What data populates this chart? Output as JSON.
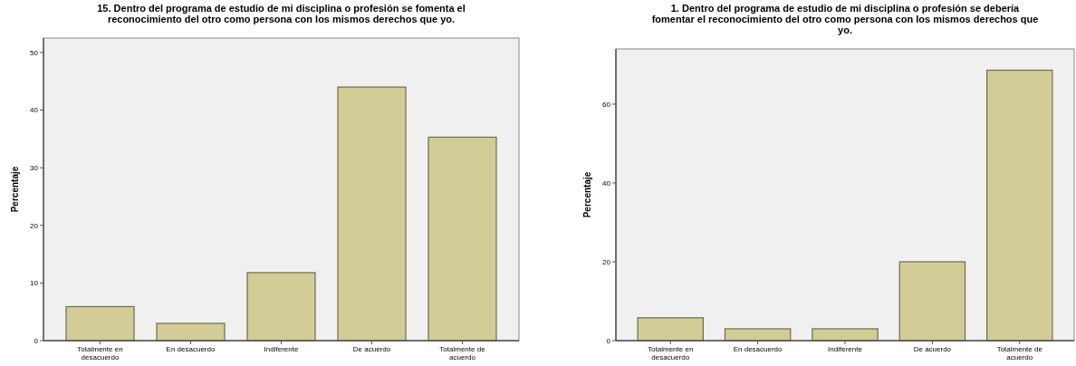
{
  "chart_data": [
    {
      "type": "bar",
      "title": "15. Dentro del programa de estudio de mi disciplina o profesión se fomenta el reconocimiento del otro como persona con los mismos derechos que yo.",
      "ylabel": "Percentaje",
      "categories": [
        "Totalmente en desacuerdo",
        "En desacuerdo",
        "Indiferente",
        "De acuerdo",
        "Totalmente de acuerdo"
      ],
      "values": [
        5.9,
        3.0,
        11.8,
        44.0,
        35.3
      ],
      "color": "#d2cd96",
      "ylim": [
        0,
        52.5
      ],
      "yticks": [
        0,
        10,
        20,
        30,
        40,
        50
      ],
      "grid": false
    },
    {
      "type": "bar",
      "title": "1. Dentro del programa de estudio de mi disciplina o profesión se debería fomentar el reconocimiento del otro como persona con los mismos derechos que yo.",
      "ylabel": "Percentaje",
      "categories": [
        "Totalmente en desacuerdo",
        "En desacuerdo",
        "Indiferente",
        "De acuerdo",
        "Totalmente de acuerdo"
      ],
      "values": [
        5.8,
        3.0,
        3.0,
        20.0,
        68.6
      ],
      "color": "#d2cd96",
      "ylim": [
        0,
        74
      ],
      "yticks": [
        0,
        20,
        40,
        60
      ],
      "grid": false
    }
  ]
}
